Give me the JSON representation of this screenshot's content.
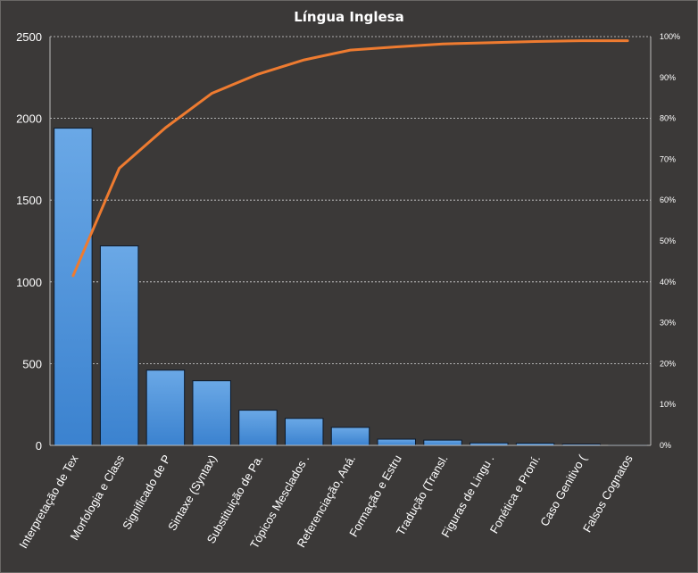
{
  "chart_data": {
    "type": "bar",
    "title": "Língua Inglesa",
    "categories": [
      "Interpretação de Tex",
      "Morfologia e Class",
      "Significado de P",
      "Sintaxe (Syntax)",
      "Substituição de Pa.",
      "Tópicos Mesclados .",
      "Referenciação, Aná.",
      "Formação e Estru",
      "Tradução (Transl.",
      "Figuras de Lingu .",
      "Fonética e Proní.",
      "Caso Genitivo (",
      "Falsos Cognatos"
    ],
    "series": [
      {
        "type": "bar",
        "values": [
          1940,
          1220,
          460,
          395,
          215,
          165,
          110,
          38,
          32,
          15,
          13,
          8,
          2
        ],
        "color": "#4a90d9"
      },
      {
        "type": "line",
        "axis": "secondary",
        "values": [
          41.5,
          67.8,
          77.7,
          86.1,
          90.8,
          94.3,
          96.7,
          97.5,
          98.2,
          98.5,
          98.8,
          99.0,
          99.0
        ],
        "color": "#ee7b30"
      }
    ],
    "y_axis": {
      "min": 0,
      "max": 2500,
      "ticks": [
        "0",
        "500",
        "1000",
        "1500",
        "2000",
        "2500"
      ]
    },
    "y2_axis": {
      "min": 0,
      "max": 100,
      "ticks": [
        "0%",
        "10%",
        "20%",
        "30%",
        "40%",
        "50%",
        "60%",
        "70%",
        "80%",
        "90%",
        "100%"
      ]
    },
    "grid": true,
    "legend": "none"
  }
}
